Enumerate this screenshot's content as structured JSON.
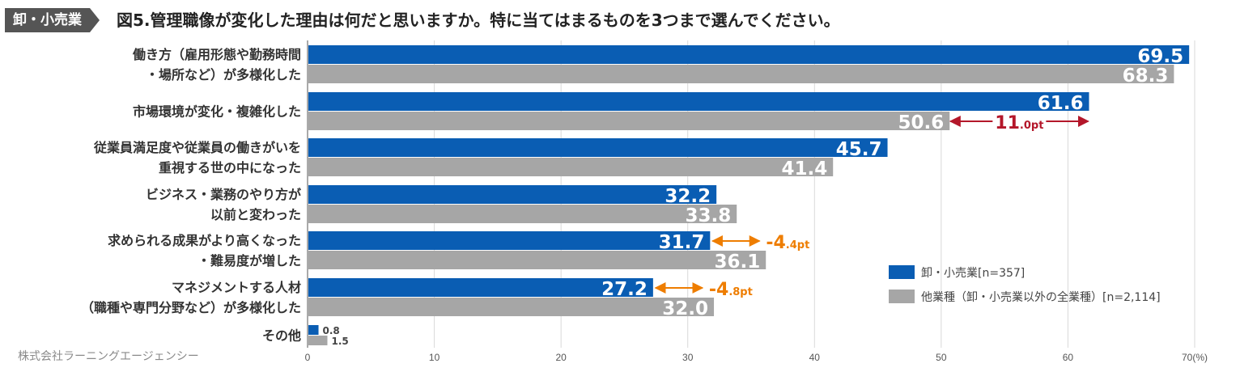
{
  "header": {
    "tag": "卸・小売業",
    "title": "図5.管理職像が変化した理由は何だと思いますか。特に当てはまるものを3つまで選んでください。"
  },
  "footer": {
    "source": "株式会社ラーニングエージェンシー"
  },
  "colors": {
    "primary": "#0a5db3",
    "secondary": "#a6a6a6",
    "diff_positive": "#b4172a",
    "diff_negative": "#ee7d00",
    "grid": "#d9d9d9"
  },
  "chart_data": {
    "type": "bar",
    "orientation": "horizontal",
    "categories": [
      [
        "働き方（雇用形態や勤務時間",
        "・場所など）が多様化した"
      ],
      [
        "市場環境が変化・複雑化した"
      ],
      [
        "従業員満足度や従業員の働きがいを",
        "重視する世の中になった"
      ],
      [
        "ビジネス・業務のやり方が",
        "以前と変わった"
      ],
      [
        "求められる成果がより高くなった",
        "・難易度が増した"
      ],
      [
        "マネジメントする人材",
        "（職種や専門分野など）が多様化した"
      ],
      [
        "その他"
      ]
    ],
    "series": [
      {
        "name": "卸・小売業[n=357]",
        "values": [
          69.5,
          61.6,
          45.7,
          32.2,
          31.7,
          27.2,
          0.8
        ],
        "labels": [
          "69.5",
          "61.6",
          "45.7",
          "32.2",
          "31.7",
          "27.2",
          "0.8"
        ]
      },
      {
        "name": "他業種（卸・小売業以外の全業種）[n=2,114]",
        "values": [
          68.3,
          50.6,
          41.4,
          33.8,
          36.1,
          32.0,
          1.5
        ],
        "labels": [
          "68.3",
          "50.6",
          "41.4",
          "33.8",
          "36.1",
          "32.0",
          "1.5"
        ]
      }
    ],
    "xlim": [
      0,
      70
    ],
    "xticks": [
      "0",
      "10",
      "20",
      "30",
      "40",
      "50",
      "60",
      "70(%)"
    ],
    "grid": true,
    "legend_position": "bottom-right",
    "annotations": [
      {
        "category_index": 1,
        "sign": "",
        "big": "11",
        "small": ".0pt",
        "color": "diff_positive",
        "from": 50.6,
        "to": 61.6
      },
      {
        "category_index": 4,
        "sign": "-",
        "big": "4",
        "small": ".4pt",
        "color": "diff_negative",
        "from": 31.7,
        "to": 36.1
      },
      {
        "category_index": 5,
        "sign": "-",
        "big": "4",
        "small": ".8pt",
        "color": "diff_negative",
        "from": 27.2,
        "to": 32.0
      }
    ]
  }
}
